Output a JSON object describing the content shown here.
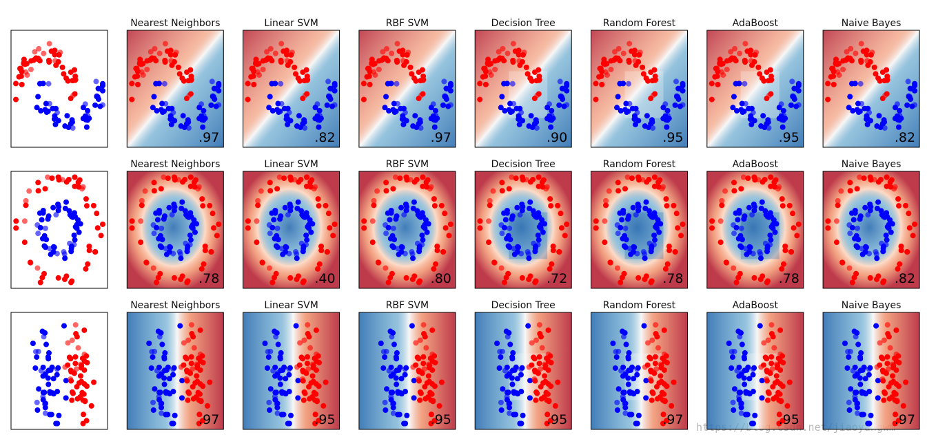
{
  "rows": [
    {
      "panels": [
        {
          "title": "Nearest Neighbors",
          "score": ".97"
        },
        {
          "title": "Linear SVM",
          "score": ".82"
        },
        {
          "title": "RBF SVM",
          "score": ".97"
        },
        {
          "title": "Decision Tree",
          "score": ".90"
        },
        {
          "title": "Random Forest",
          "score": ".95"
        },
        {
          "title": "AdaBoost",
          "score": ".95"
        },
        {
          "title": "Naive Bayes",
          "score": ".82"
        }
      ]
    },
    {
      "panels": [
        {
          "title": "Nearest Neighbors",
          "score": ".78"
        },
        {
          "title": "Linear SVM",
          "score": ".40"
        },
        {
          "title": "RBF SVM",
          "score": ".80"
        },
        {
          "title": "Decision Tree",
          "score": ".72"
        },
        {
          "title": "Random Forest",
          "score": ".78"
        },
        {
          "title": "AdaBoost",
          "score": ".78"
        },
        {
          "title": "Naive Bayes",
          "score": ".82"
        }
      ]
    },
    {
      "panels": [
        {
          "title": "Nearest Neighbors",
          "score": ".97"
        },
        {
          "title": "Linear SVM",
          "score": ".95"
        },
        {
          "title": "RBF SVM",
          "score": ".95"
        },
        {
          "title": "Decision Tree",
          "score": ".95"
        },
        {
          "title": "Random Forest",
          "score": ".97"
        },
        {
          "title": "AdaBoost",
          "score": ".95"
        },
        {
          "title": "Naive Bayes",
          "score": ".97"
        }
      ]
    }
  ],
  "watermark": "https://blog.csdn.net/jiaoyangwm"
}
